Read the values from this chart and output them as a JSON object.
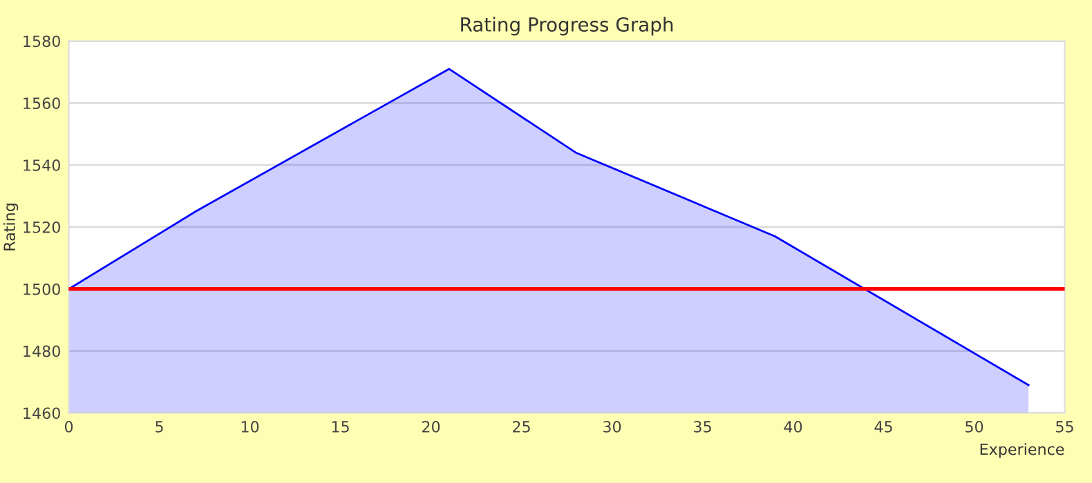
{
  "chart_data": {
    "type": "area",
    "title": "Rating Progress Graph",
    "xlabel": "Experience",
    "ylabel": "Rating",
    "x": [
      0,
      7,
      21,
      28,
      39,
      53
    ],
    "series": [
      {
        "color": "#0000ff",
        "values": [
          1500,
          1525,
          1571,
          1544,
          1517,
          1469
        ]
      }
    ],
    "xlim": [
      0,
      55
    ],
    "xticks": [
      0,
      5,
      10,
      15,
      20,
      25,
      30,
      35,
      40,
      45,
      50,
      55
    ],
    "ylim": [
      1460,
      1580
    ],
    "yticks": [
      1460,
      1480,
      1500,
      1520,
      1540,
      1560,
      1580
    ],
    "grid": "y",
    "ref_lines": [
      {
        "axis": "y",
        "value": 1500,
        "color": "#ff0000"
      }
    ]
  }
}
